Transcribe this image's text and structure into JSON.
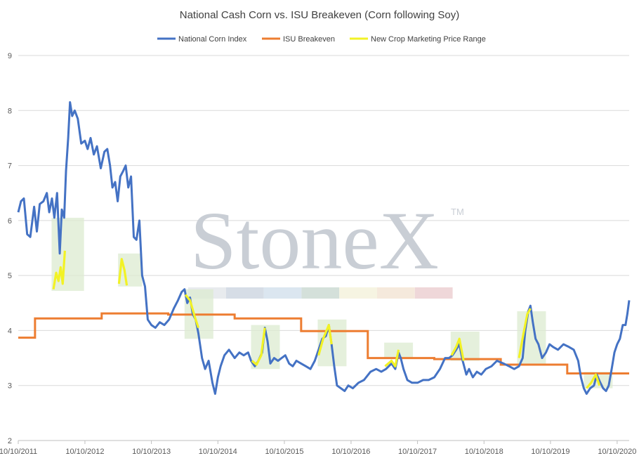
{
  "chart_data": {
    "type": "line",
    "title": "National Cash Corn vs. ISU Breakeven (Corn following Soy)",
    "xlabel": "",
    "ylabel": "",
    "ylim": [
      2,
      9
    ],
    "y_ticks": [
      2,
      3,
      4,
      5,
      6,
      7,
      8,
      9
    ],
    "x_ticks": [
      "10/10/2011",
      "10/10/2012",
      "10/10/2013",
      "10/10/2014",
      "10/10/2015",
      "10/10/2016",
      "10/10/2017",
      "10/10/2018",
      "10/10/2019",
      "10/10/2020"
    ],
    "x_domain": [
      "2011-10-10",
      "2020-12-15"
    ],
    "legend_position": "top-center",
    "grid": "horizontal",
    "watermark": "StoneX",
    "watermark_mark": "TM",
    "colors": {
      "corn": "#4472c4",
      "breakeven": "#ed7d31",
      "range": "#f2f225",
      "box": "#dcebd0",
      "grid": "#d9d9d9"
    },
    "series": [
      {
        "name": "National Corn Index",
        "key": "corn",
        "points": [
          [
            "2011-10-10",
            6.15
          ],
          [
            "2011-10-25",
            6.35
          ],
          [
            "2011-11-10",
            6.4
          ],
          [
            "2011-11-28",
            5.75
          ],
          [
            "2011-12-15",
            5.7
          ],
          [
            "2012-01-05",
            6.25
          ],
          [
            "2012-01-20",
            5.8
          ],
          [
            "2012-02-05",
            6.3
          ],
          [
            "2012-02-25",
            6.35
          ],
          [
            "2012-03-15",
            6.5
          ],
          [
            "2012-03-28",
            6.15
          ],
          [
            "2012-04-12",
            6.4
          ],
          [
            "2012-04-25",
            6.05
          ],
          [
            "2012-05-10",
            6.5
          ],
          [
            "2012-05-25",
            5.4
          ],
          [
            "2012-06-05",
            6.2
          ],
          [
            "2012-06-18",
            6.05
          ],
          [
            "2012-06-28",
            6.9
          ],
          [
            "2012-07-10",
            7.5
          ],
          [
            "2012-07-20",
            8.15
          ],
          [
            "2012-08-01",
            7.9
          ],
          [
            "2012-08-15",
            8.0
          ],
          [
            "2012-09-01",
            7.85
          ],
          [
            "2012-09-20",
            7.4
          ],
          [
            "2012-10-10",
            7.45
          ],
          [
            "2012-10-25",
            7.3
          ],
          [
            "2012-11-10",
            7.5
          ],
          [
            "2012-11-28",
            7.2
          ],
          [
            "2012-12-15",
            7.35
          ],
          [
            "2013-01-05",
            6.95
          ],
          [
            "2013-01-25",
            7.25
          ],
          [
            "2013-02-10",
            7.3
          ],
          [
            "2013-02-25",
            7.0
          ],
          [
            "2013-03-10",
            6.6
          ],
          [
            "2013-03-25",
            6.7
          ],
          [
            "2013-04-08",
            6.35
          ],
          [
            "2013-04-22",
            6.8
          ],
          [
            "2013-05-08",
            6.9
          ],
          [
            "2013-05-22",
            7.0
          ],
          [
            "2013-06-05",
            6.6
          ],
          [
            "2013-06-20",
            6.8
          ],
          [
            "2013-07-05",
            5.7
          ],
          [
            "2013-07-20",
            5.65
          ],
          [
            "2013-08-05",
            6.0
          ],
          [
            "2013-08-20",
            5.0
          ],
          [
            "2013-09-05",
            4.8
          ],
          [
            "2013-09-20",
            4.2
          ],
          [
            "2013-10-10",
            4.1
          ],
          [
            "2013-11-01",
            4.05
          ],
          [
            "2013-11-25",
            4.15
          ],
          [
            "2013-12-20",
            4.1
          ],
          [
            "2014-01-15",
            4.2
          ],
          [
            "2014-02-10",
            4.4
          ],
          [
            "2014-03-05",
            4.55
          ],
          [
            "2014-03-25",
            4.7
          ],
          [
            "2014-04-10",
            4.75
          ],
          [
            "2014-04-25",
            4.5
          ],
          [
            "2014-05-10",
            4.6
          ],
          [
            "2014-05-25",
            4.3
          ],
          [
            "2014-06-10",
            4.2
          ],
          [
            "2014-06-25",
            3.95
          ],
          [
            "2014-07-15",
            3.5
          ],
          [
            "2014-08-01",
            3.3
          ],
          [
            "2014-08-20",
            3.45
          ],
          [
            "2014-09-10",
            3.05
          ],
          [
            "2014-09-25",
            2.85
          ],
          [
            "2014-10-10",
            3.15
          ],
          [
            "2014-10-25",
            3.35
          ],
          [
            "2014-11-15",
            3.55
          ],
          [
            "2014-12-10",
            3.65
          ],
          [
            "2015-01-10",
            3.5
          ],
          [
            "2015-02-05",
            3.6
          ],
          [
            "2015-03-01",
            3.55
          ],
          [
            "2015-03-25",
            3.6
          ],
          [
            "2015-04-10",
            3.45
          ],
          [
            "2015-05-01",
            3.35
          ],
          [
            "2015-05-20",
            3.45
          ],
          [
            "2015-06-10",
            3.6
          ],
          [
            "2015-06-25",
            4.05
          ],
          [
            "2015-07-10",
            3.8
          ],
          [
            "2015-07-25",
            3.4
          ],
          [
            "2015-08-15",
            3.5
          ],
          [
            "2015-09-05",
            3.45
          ],
          [
            "2015-09-25",
            3.5
          ],
          [
            "2015-10-15",
            3.55
          ],
          [
            "2015-11-05",
            3.4
          ],
          [
            "2015-11-25",
            3.35
          ],
          [
            "2015-12-15",
            3.45
          ],
          [
            "2016-01-10",
            3.4
          ],
          [
            "2016-02-05",
            3.35
          ],
          [
            "2016-03-01",
            3.3
          ],
          [
            "2016-03-25",
            3.45
          ],
          [
            "2016-04-15",
            3.65
          ],
          [
            "2016-05-05",
            3.85
          ],
          [
            "2016-05-25",
            3.9
          ],
          [
            "2016-06-10",
            4.1
          ],
          [
            "2016-06-25",
            3.75
          ],
          [
            "2016-07-10",
            3.35
          ],
          [
            "2016-07-25",
            3.0
          ],
          [
            "2016-08-15",
            2.95
          ],
          [
            "2016-09-05",
            2.9
          ],
          [
            "2016-09-25",
            3.0
          ],
          [
            "2016-10-20",
            2.95
          ],
          [
            "2016-11-20",
            3.05
          ],
          [
            "2016-12-20",
            3.1
          ],
          [
            "2017-01-25",
            3.25
          ],
          [
            "2017-02-25",
            3.3
          ],
          [
            "2017-03-25",
            3.25
          ],
          [
            "2017-04-20",
            3.3
          ],
          [
            "2017-05-20",
            3.4
          ],
          [
            "2017-06-10",
            3.3
          ],
          [
            "2017-06-28",
            3.6
          ],
          [
            "2017-07-10",
            3.5
          ],
          [
            "2017-07-25",
            3.3
          ],
          [
            "2017-08-15",
            3.1
          ],
          [
            "2017-09-10",
            3.05
          ],
          [
            "2017-10-10",
            3.05
          ],
          [
            "2017-11-10",
            3.1
          ],
          [
            "2017-12-10",
            3.1
          ],
          [
            "2018-01-10",
            3.15
          ],
          [
            "2018-02-10",
            3.3
          ],
          [
            "2018-03-10",
            3.5
          ],
          [
            "2018-04-01",
            3.5
          ],
          [
            "2018-04-20",
            3.55
          ],
          [
            "2018-05-10",
            3.65
          ],
          [
            "2018-05-28",
            3.75
          ],
          [
            "2018-06-15",
            3.45
          ],
          [
            "2018-07-05",
            3.2
          ],
          [
            "2018-07-20",
            3.3
          ],
          [
            "2018-08-10",
            3.15
          ],
          [
            "2018-09-01",
            3.25
          ],
          [
            "2018-09-25",
            3.2
          ],
          [
            "2018-10-20",
            3.3
          ],
          [
            "2018-11-20",
            3.35
          ],
          [
            "2018-12-20",
            3.45
          ],
          [
            "2019-01-25",
            3.4
          ],
          [
            "2019-02-25",
            3.35
          ],
          [
            "2019-03-25",
            3.3
          ],
          [
            "2019-04-20",
            3.35
          ],
          [
            "2019-05-10",
            3.5
          ],
          [
            "2019-05-25",
            4.0
          ],
          [
            "2019-06-10",
            4.35
          ],
          [
            "2019-06-22",
            4.45
          ],
          [
            "2019-07-05",
            4.15
          ],
          [
            "2019-07-20",
            3.85
          ],
          [
            "2019-08-05",
            3.75
          ],
          [
            "2019-08-25",
            3.5
          ],
          [
            "2019-09-15",
            3.6
          ],
          [
            "2019-10-05",
            3.75
          ],
          [
            "2019-10-25",
            3.7
          ],
          [
            "2019-11-20",
            3.65
          ],
          [
            "2019-12-20",
            3.75
          ],
          [
            "2020-01-20",
            3.7
          ],
          [
            "2020-02-15",
            3.65
          ],
          [
            "2020-03-10",
            3.45
          ],
          [
            "2020-03-25",
            3.15
          ],
          [
            "2020-04-10",
            2.95
          ],
          [
            "2020-04-25",
            2.85
          ],
          [
            "2020-05-15",
            2.95
          ],
          [
            "2020-06-05",
            3.0
          ],
          [
            "2020-06-20",
            3.2
          ],
          [
            "2020-07-10",
            3.05
          ],
          [
            "2020-07-25",
            2.95
          ],
          [
            "2020-08-10",
            2.9
          ],
          [
            "2020-08-25",
            3.0
          ],
          [
            "2020-09-10",
            3.3
          ],
          [
            "2020-09-25",
            3.6
          ],
          [
            "2020-10-10",
            3.75
          ],
          [
            "2020-10-25",
            3.85
          ],
          [
            "2020-11-10",
            4.1
          ],
          [
            "2020-11-25",
            4.1
          ],
          [
            "2020-12-05",
            4.3
          ],
          [
            "2020-12-15",
            4.55
          ]
        ]
      },
      {
        "name": "ISU Breakeven",
        "key": "breakeven",
        "step": true,
        "points": [
          [
            "2011-10-10",
            3.87
          ],
          [
            "2012-01-10",
            4.22
          ],
          [
            "2013-01-10",
            4.31
          ],
          [
            "2014-01-10",
            4.29
          ],
          [
            "2015-01-10",
            4.22
          ],
          [
            "2016-01-10",
            3.99
          ],
          [
            "2017-01-10",
            3.5
          ],
          [
            "2018-01-10",
            3.48
          ],
          [
            "2019-01-10",
            3.38
          ],
          [
            "2020-01-10",
            3.22
          ],
          [
            "2020-12-15",
            3.22
          ]
        ]
      },
      {
        "name": "New Crop Marketing Price Range",
        "key": "range",
        "segments": [
          [
            [
              "2012-04-20",
              4.75
            ],
            [
              "2012-05-05",
              5.05
            ],
            [
              "2012-05-18",
              4.9
            ],
            [
              "2012-05-30",
              5.15
            ],
            [
              "2012-06-10",
              4.85
            ],
            [
              "2012-06-22",
              5.45
            ]
          ],
          [
            [
              "2013-04-15",
              4.85
            ],
            [
              "2013-04-30",
              5.3
            ],
            [
              "2013-05-15",
              5.1
            ],
            [
              "2013-05-28",
              4.82
            ]
          ],
          [
            [
              "2014-04-15",
              4.65
            ],
            [
              "2014-05-10",
              4.55
            ],
            [
              "2014-06-05",
              4.25
            ],
            [
              "2014-06-25",
              4.05
            ]
          ],
          [
            [
              "2015-04-15",
              3.45
            ],
            [
              "2015-05-10",
              3.38
            ],
            [
              "2015-06-05",
              3.55
            ],
            [
              "2015-06-25",
              4.05
            ]
          ],
          [
            [
              "2016-04-15",
              3.55
            ],
            [
              "2016-05-10",
              3.85
            ],
            [
              "2016-06-10",
              4.1
            ],
            [
              "2016-06-25",
              3.75
            ]
          ],
          [
            [
              "2017-04-15",
              3.35
            ],
            [
              "2017-05-20",
              3.45
            ],
            [
              "2017-06-10",
              3.35
            ],
            [
              "2017-06-28",
              3.65
            ]
          ],
          [
            [
              "2018-04-15",
              3.55
            ],
            [
              "2018-05-10",
              3.7
            ],
            [
              "2018-05-28",
              3.85
            ],
            [
              "2018-06-20",
              3.45
            ]
          ],
          [
            [
              "2019-04-20",
              3.5
            ],
            [
              "2019-05-15",
              3.95
            ],
            [
              "2019-06-05",
              4.3
            ],
            [
              "2019-06-22",
              4.4
            ]
          ],
          [
            [
              "2020-04-25",
              2.95
            ],
            [
              "2020-05-20",
              3.05
            ],
            [
              "2020-06-15",
              3.2
            ],
            [
              "2020-07-05",
              3.0
            ]
          ]
        ]
      }
    ],
    "range_boxes": [
      {
        "x0": "2012-04-10",
        "x1": "2012-10-05",
        "y0": 4.72,
        "y1": 6.05
      },
      {
        "x0": "2013-04-10",
        "x1": "2013-08-20",
        "y0": 4.8,
        "y1": 5.4
      },
      {
        "x0": "2014-04-10",
        "x1": "2014-09-15",
        "y0": 3.85,
        "y1": 4.75
      },
      {
        "x0": "2015-04-10",
        "x1": "2015-09-15",
        "y0": 3.3,
        "y1": 4.1
      },
      {
        "x0": "2016-04-10",
        "x1": "2016-09-15",
        "y0": 3.35,
        "y1": 4.2
      },
      {
        "x0": "2017-04-10",
        "x1": "2017-09-15",
        "y0": 3.5,
        "y1": 3.78
      },
      {
        "x0": "2018-04-10",
        "x1": "2018-09-15",
        "y0": 3.45,
        "y1": 3.98
      },
      {
        "x0": "2019-04-10",
        "x1": "2019-09-15",
        "y0": 3.38,
        "y1": 4.35
      },
      {
        "x0": "2020-04-10",
        "x1": "2020-09-15",
        "y0": 2.95,
        "y1": 3.25
      }
    ],
    "watermark_band_colors": [
      "#e8ebee",
      "#d6dde6",
      "#dbe6f0",
      "#d4e0da",
      "#f6f4e2",
      "#f5e9dc",
      "#efd7d9"
    ]
  }
}
